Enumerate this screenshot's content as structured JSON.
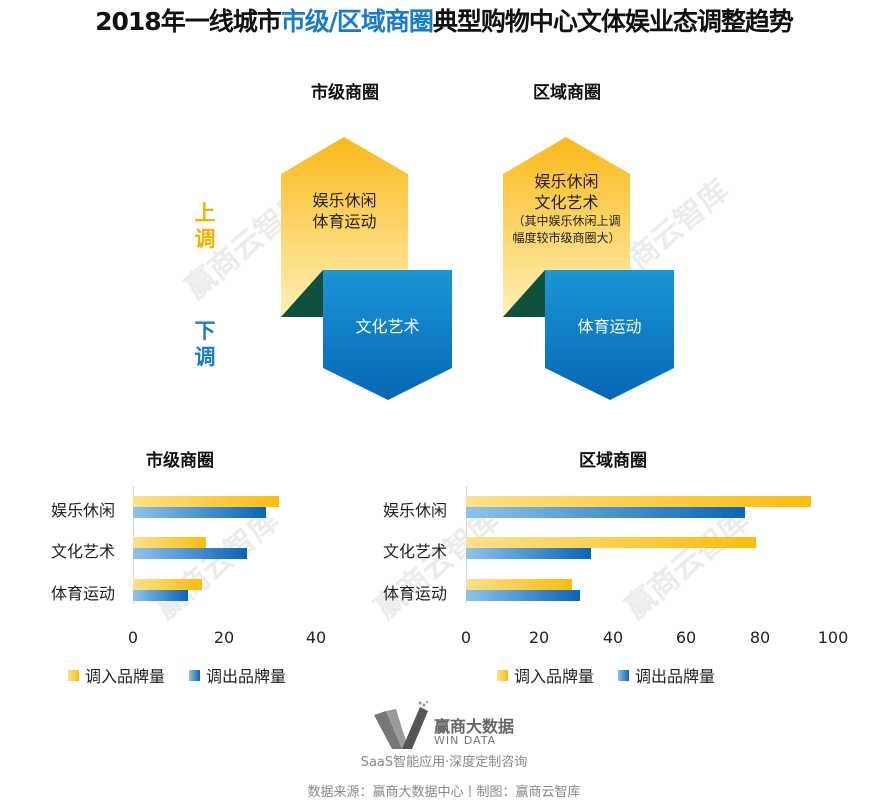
{
  "title": {
    "prefix": "2018年一线城市",
    "highlight": "市级/区域商圈",
    "suffix": "典型购物中心文体娱业态调整趋势"
  },
  "diagram": {
    "up_label": "上调",
    "up_label_chars": [
      "上",
      "调"
    ],
    "down_label_chars": [
      "下",
      "调"
    ],
    "down_label": "下调",
    "colors": {
      "up": "#f0b400",
      "down": "#1a7bc9",
      "triangle": "#10503f"
    },
    "panels": [
      {
        "heading": "市级商圈",
        "up_items": [
          "娱乐休闲",
          "体育运动"
        ],
        "up_note": "",
        "down_items": [
          "文化艺术"
        ]
      },
      {
        "heading": "区域商圈",
        "up_items": [
          "娱乐休闲",
          "文化艺术"
        ],
        "up_note": "（其中娱乐休闲上调幅度较市级商圈大）",
        "up_note_lines": [
          "（其中娱乐休闲上调",
          "幅度较市级商圈大）"
        ],
        "down_items": [
          "体育运动"
        ]
      }
    ]
  },
  "chart_data": [
    {
      "type": "bar",
      "orientation": "horizontal",
      "title": "市级商圈",
      "categories": [
        "娱乐休闲",
        "文化艺术",
        "体育运动"
      ],
      "series": [
        {
          "name": "调入品牌量",
          "values": [
            32,
            16,
            15
          ],
          "color": "#fbbd0e"
        },
        {
          "name": "调出品牌量",
          "values": [
            29,
            25,
            12
          ],
          "color": "#0a65b8"
        }
      ],
      "xlabel": "",
      "ylabel": "",
      "xlim": [
        0,
        40
      ],
      "xticks": [
        "0",
        "20",
        "40"
      ],
      "grid": false,
      "legend_position": "bottom"
    },
    {
      "type": "bar",
      "orientation": "horizontal",
      "title": "区域商圈",
      "categories": [
        "娱乐休闲",
        "文化艺术",
        "体育运动"
      ],
      "series": [
        {
          "name": "调入品牌量",
          "values": [
            94,
            79,
            29
          ],
          "color": "#fbbd0e"
        },
        {
          "name": "调出品牌量",
          "values": [
            76,
            34,
            31
          ],
          "color": "#0a65b8"
        }
      ],
      "xlabel": "",
      "ylabel": "",
      "xlim": [
        0,
        100
      ],
      "xticks": [
        "0",
        "20",
        "40",
        "60",
        "80",
        "100"
      ],
      "grid": false,
      "legend_position": "bottom"
    }
  ],
  "watermark": "赢商云智库",
  "logo": {
    "name_cn": "赢商大数据",
    "name_en": "WIN DATA",
    "tagline": "SaaS智能应用·深度定制咨询"
  },
  "footer": {
    "source": "数据来源：赢商大数据中心丨制图：赢商云智库"
  }
}
